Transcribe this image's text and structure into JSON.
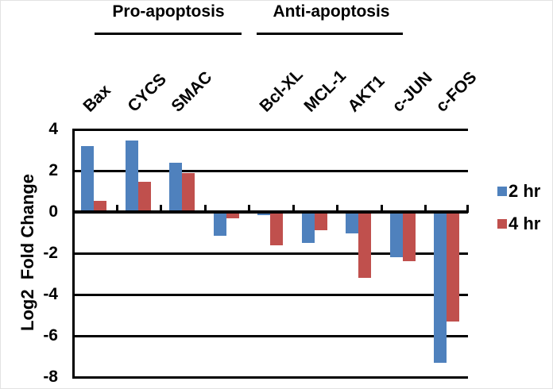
{
  "chart_data": {
    "type": "bar",
    "title": "",
    "xlabel": "",
    "ylabel": "Log2  Fold Change",
    "categories": [
      "Bax",
      "CYCS",
      "SMAC",
      "",
      "Bcl-XL",
      "MCL-1",
      "AKT1",
      "c-JUN",
      "c-FOS"
    ],
    "series": [
      {
        "name": "2 hr",
        "color": "#4f81bd",
        "values": [
          3.2,
          3.45,
          2.4,
          -1.15,
          -0.15,
          -1.5,
          -1.05,
          -2.2,
          -7.3
        ]
      },
      {
        "name": "4 hr",
        "color": "#c0504d",
        "values": [
          0.55,
          1.45,
          1.9,
          -0.3,
          -1.6,
          -0.9,
          -3.2,
          -2.4,
          -5.3
        ]
      }
    ],
    "ylim": [
      -8,
      4
    ],
    "yticks": [
      4,
      2,
      0,
      -2,
      -4,
      -6,
      -8
    ],
    "grid": true,
    "legend_position": "right",
    "annotations": [
      {
        "text": "Pro-apoptosis",
        "over_categories": [
          "Bax",
          "CYCS",
          "SMAC"
        ]
      },
      {
        "text": "Anti-apoptosis",
        "over_categories": [
          "Bcl-XL",
          "MCL-1",
          "AKT1",
          "c-JUN"
        ]
      }
    ]
  }
}
